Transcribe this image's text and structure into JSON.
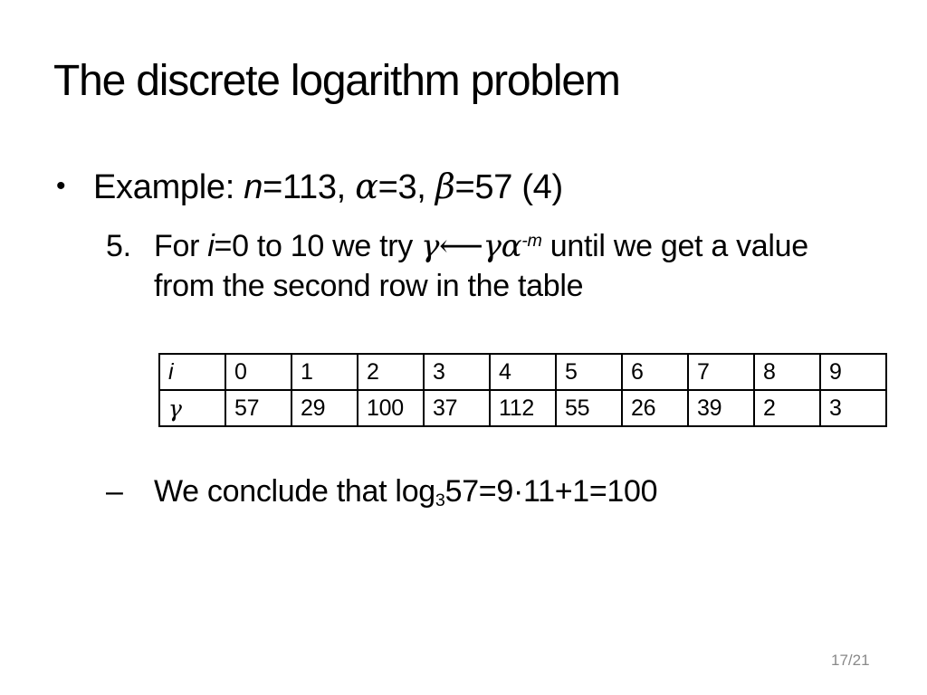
{
  "title": "The discrete logarithm problem",
  "page_number": "17/21",
  "example": {
    "marker": "•",
    "prefix": "Example: ",
    "var_n": "n",
    "seg_n": "=113, ",
    "alpha": "α",
    "seg_alpha": "=3, ",
    "beta": "β",
    "seg_beta": "=57 (4)"
  },
  "step5": {
    "number": "5.",
    "seg_for": "For ",
    "var_i": "i",
    "seg_range": "=0 to 10 we try ",
    "formula": "γ⟵γα",
    "exponent": "-m",
    "seg_until": " until we get a value",
    "line2": "from the second row in the table"
  },
  "table": {
    "header_row": [
      "i",
      "0",
      "1",
      "2",
      "3",
      "4",
      "5",
      "6",
      "7",
      "8",
      "9"
    ],
    "gamma_row": [
      "γ",
      "57",
      "29",
      "100",
      "37",
      "112",
      "55",
      "26",
      "39",
      "2",
      "3"
    ]
  },
  "conclusion": {
    "marker": "–",
    "seg_before": "We conclude that log",
    "base": "3",
    "seg_after": "57=9·11+1=100"
  },
  "colors": {
    "text": "#000000",
    "page_number": "#898989",
    "background": "#ffffff",
    "table_border": "#000000"
  }
}
